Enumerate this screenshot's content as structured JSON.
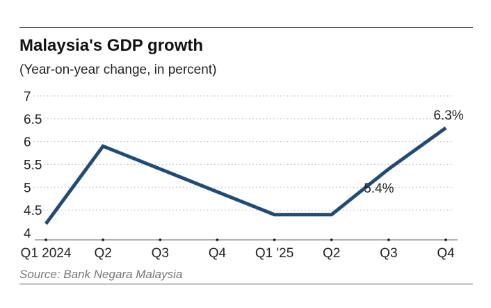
{
  "chart_data": {
    "type": "line",
    "title": "Malaysia's GDP growth",
    "subtitle": "(Year-on-year change, in percent)",
    "source": "Source: Bank Negara Malaysia",
    "categories": [
      "Q1 2024",
      "Q2",
      "Q3",
      "Q4",
      "Q1 '25",
      "Q2",
      "Q3",
      "Q4"
    ],
    "series": [
      {
        "name": "GDP growth",
        "values": [
          4.2,
          5.9,
          5.4,
          4.9,
          4.4,
          4.4,
          5.4,
          6.3
        ],
        "color": "#1f4a7a"
      }
    ],
    "annotations": [
      {
        "index": 6,
        "text": "5.4%"
      },
      {
        "index": 7,
        "text": "6.3%"
      }
    ],
    "yticks": [
      "4",
      "4.5",
      "5",
      "5.5",
      "6",
      "6.5",
      "7"
    ],
    "ylim": [
      4,
      7
    ],
    "xlabel": "",
    "ylabel": "",
    "grid": true
  }
}
